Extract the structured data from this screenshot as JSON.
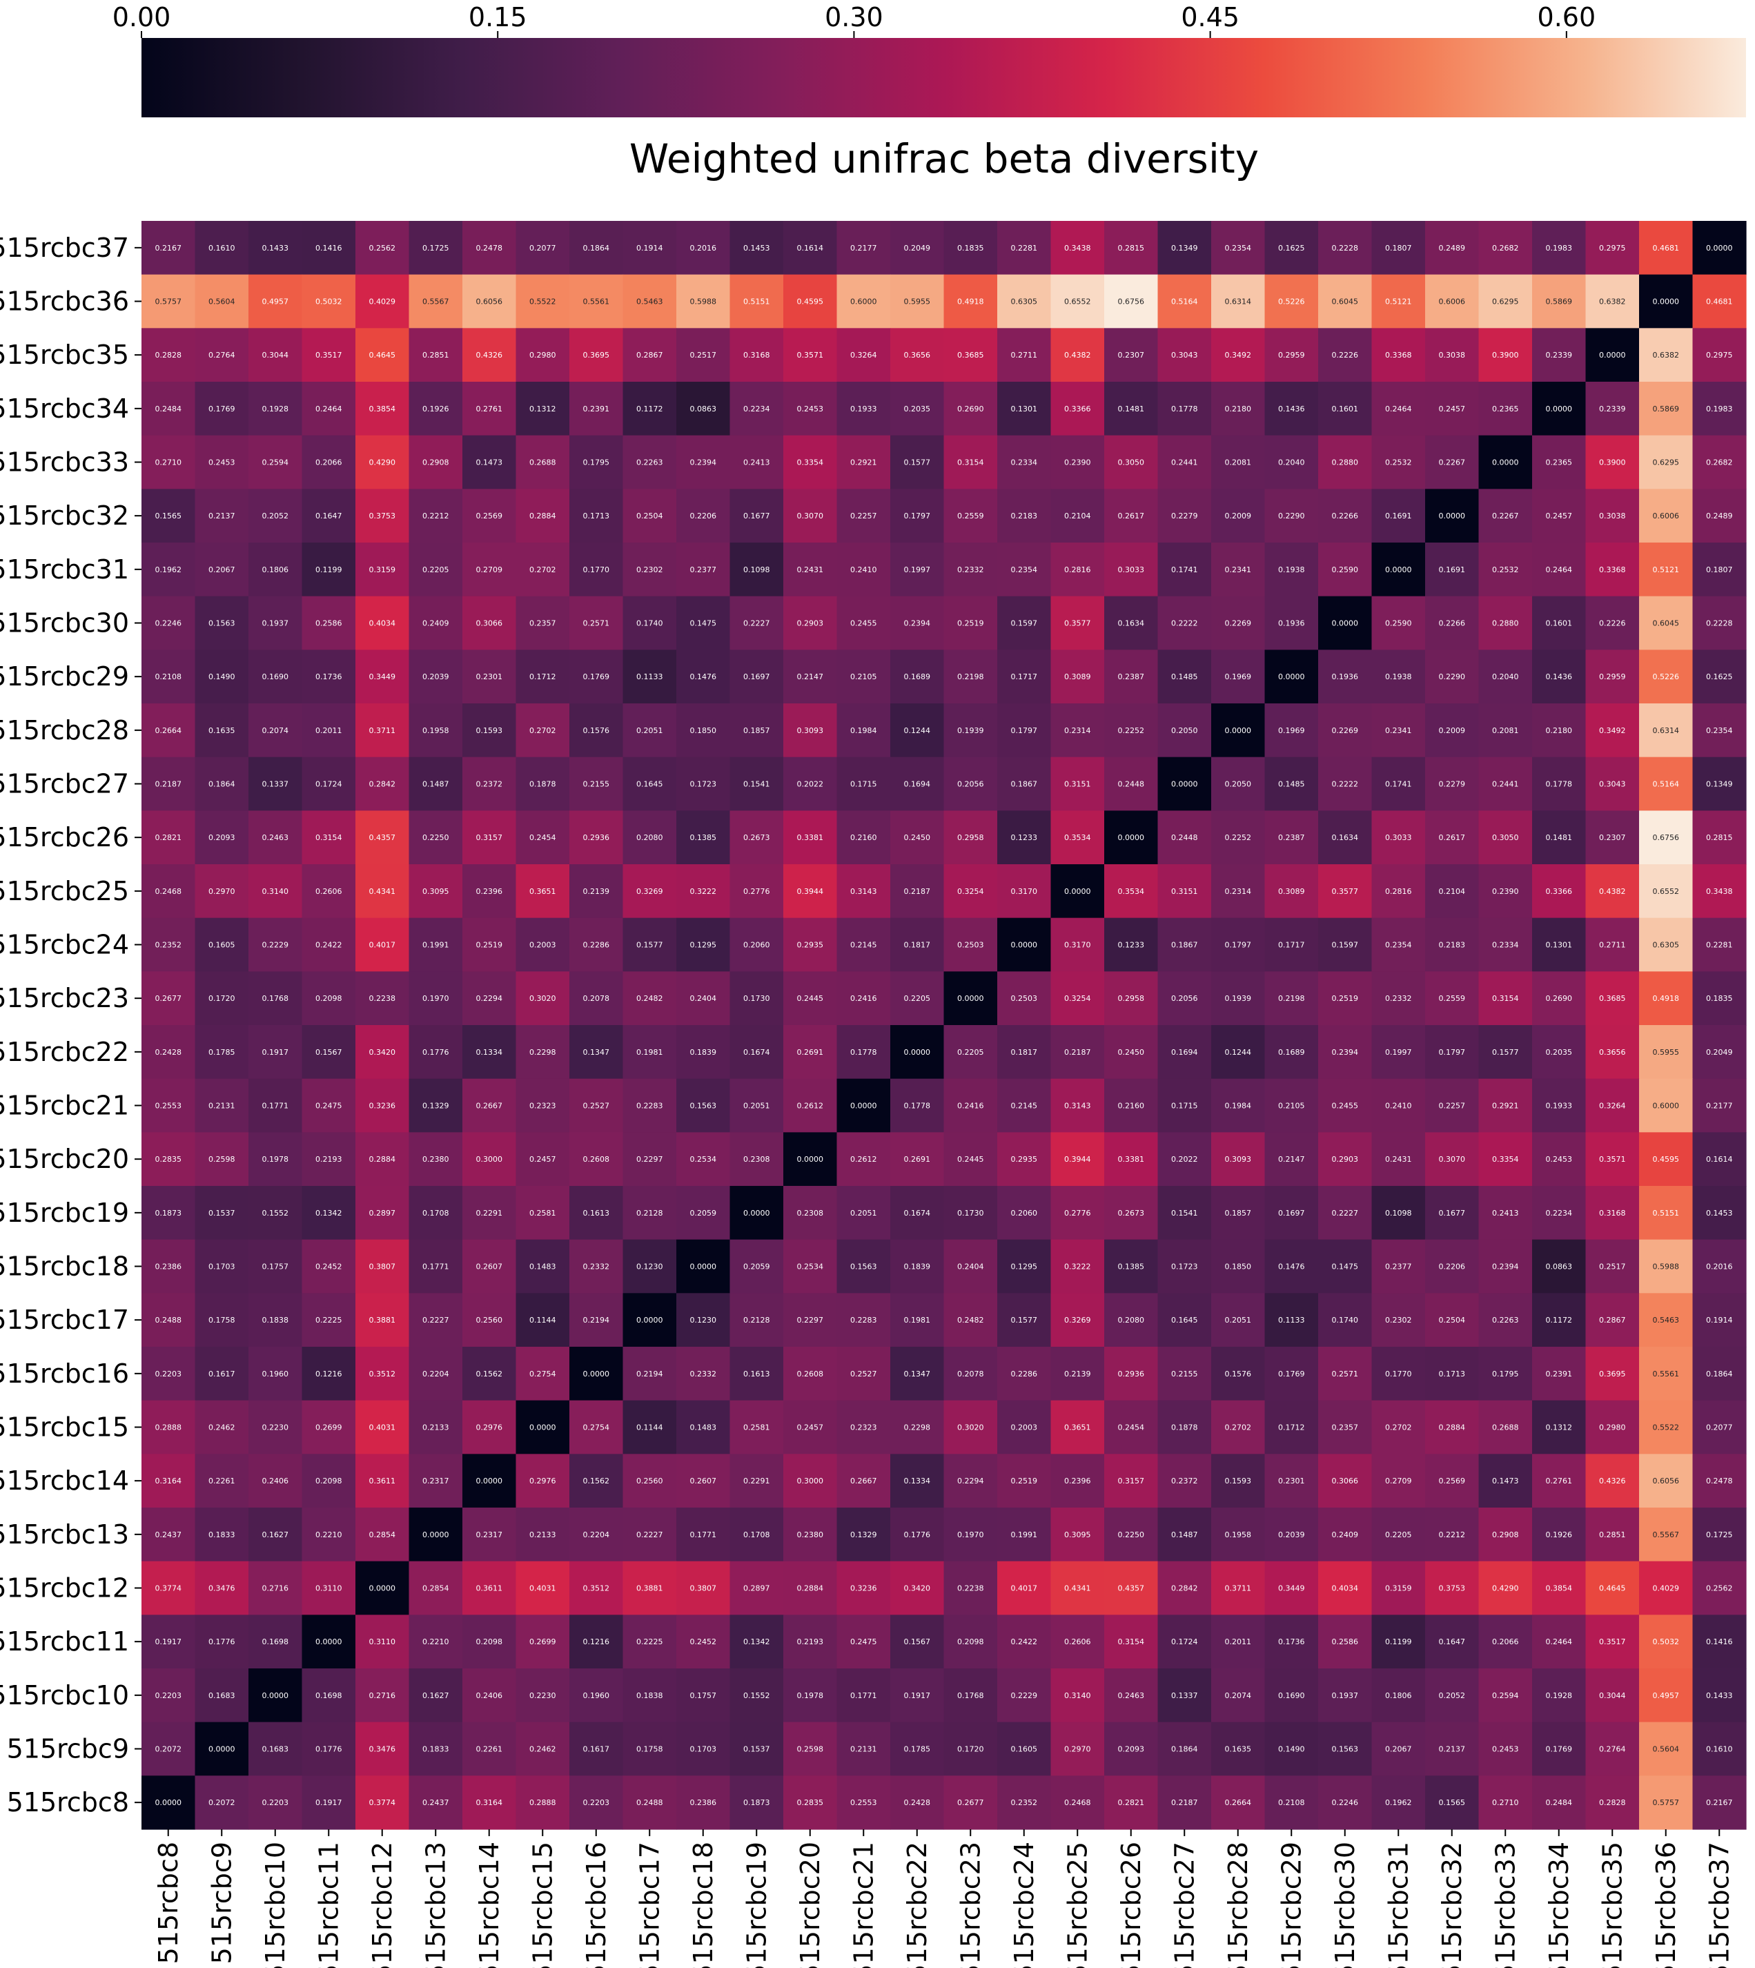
{
  "chart_data": {
    "type": "heatmap",
    "title": "Weighted unifrac beta diversity",
    "xlabel": "",
    "ylabel": "",
    "colormap": "rocket",
    "colorbar": {
      "position": "top",
      "range": [
        0.0,
        0.6756
      ],
      "ticks": [
        0.0,
        0.15,
        0.3,
        0.45,
        0.6
      ],
      "tick_labels": [
        "0.00",
        "0.15",
        "0.30",
        "0.45",
        "0.60"
      ],
      "label": "Weighted unifrac beta diversity"
    },
    "x_labels": [
      "515rcbc8",
      "515rcbc9",
      "515rcbc10",
      "515rcbc11",
      "515rcbc12",
      "515rcbc13",
      "515rcbc14",
      "515rcbc15",
      "515rcbc16",
      "515rcbc17",
      "515rcbc18",
      "515rcbc19",
      "515rcbc20",
      "515rcbc21",
      "515rcbc22",
      "515rcbc23",
      "515rcbc24",
      "515rcbc25",
      "515rcbc26",
      "515rcbc27",
      "515rcbc28",
      "515rcbc29",
      "515rcbc30",
      "515rcbc31",
      "515rcbc32",
      "515rcbc33",
      "515rcbc34",
      "515rcbc35",
      "515rcbc36",
      "515rcbc37"
    ],
    "y_labels_top_to_bottom": [
      "515rcbc37",
      "515rcbc36",
      "515rcbc35",
      "515rcbc34",
      "515rcbc33",
      "515rcbc32",
      "515rcbc31",
      "515rcbc30",
      "515rcbc29",
      "515rcbc28",
      "515rcbc27",
      "515rcbc26",
      "515rcbc25",
      "515rcbc24",
      "515rcbc23",
      "515rcbc22",
      "515rcbc21",
      "515rcbc20",
      "515rcbc19",
      "515rcbc18",
      "515rcbc17",
      "515rcbc16",
      "515rcbc15",
      "515rcbc14",
      "515rcbc13",
      "515rcbc12",
      "515rcbc11",
      "515rcbc10",
      "515rcbc9",
      "515rcbc8"
    ],
    "matrix_top_to_bottom": [
      [
        "0.2167",
        "0.1610",
        "0.1433",
        "0.1416",
        "0.2562",
        "0.1725",
        "0.2478",
        "0.2077",
        "0.1864",
        "0.1914",
        "0.2016",
        "0.1453",
        "0.1614",
        "0.2177",
        "0.2049",
        "0.1835",
        "0.2281",
        "0.3438",
        "0.2815",
        "0.1349",
        "0.2354",
        "0.1625",
        "0.2228",
        "0.1807",
        "0.2489",
        "0.2682",
        "0.1983",
        "0.2975",
        "0.4681",
        "0.0000"
      ],
      [
        "0.5757",
        "0.5604",
        "0.4957",
        "0.5032",
        "0.4029",
        "0.5567",
        "0.6056",
        "0.5522",
        "0.5561",
        "0.5463",
        "0.5988",
        "0.5151",
        "0.4595",
        "0.6000",
        "0.5955",
        "0.4918",
        "0.6305",
        "0.6552",
        "0.6756",
        "0.5164",
        "0.6314",
        "0.5226",
        "0.6045",
        "0.5121",
        "0.6006",
        "0.6295",
        "0.5869",
        "0.6382",
        "0.0000",
        "0.4681"
      ],
      [
        "0.2828",
        "0.2764",
        "0.3044",
        "0.3517",
        "0.4645",
        "0.2851",
        "0.4326",
        "0.2980",
        "0.3695",
        "0.2867",
        "0.2517",
        "0.3168",
        "0.3571",
        "0.3264",
        "0.3656",
        "0.3685",
        "0.2711",
        "0.4382",
        "0.2307",
        "0.3043",
        "0.3492",
        "0.2959",
        "0.2226",
        "0.3368",
        "0.3038",
        "0.3900",
        "0.2339",
        "0.0000",
        "0.6382",
        "0.2975"
      ],
      [
        "0.2484",
        "0.1769",
        "0.1928",
        "0.2464",
        "0.3854",
        "0.1926",
        "0.2761",
        "0.1312",
        "0.2391",
        "0.1172",
        "0.0863",
        "0.2234",
        "0.2453",
        "0.1933",
        "0.2035",
        "0.2690",
        "0.1301",
        "0.3366",
        "0.1481",
        "0.1778",
        "0.2180",
        "0.1436",
        "0.1601",
        "0.2464",
        "0.2457",
        "0.2365",
        "0.0000",
        "0.2339",
        "0.5869",
        "0.1983"
      ],
      [
        "0.2710",
        "0.2453",
        "0.2594",
        "0.2066",
        "0.4290",
        "0.2908",
        "0.1473",
        "0.2688",
        "0.1795",
        "0.2263",
        "0.2394",
        "0.2413",
        "0.3354",
        "0.2921",
        "0.1577",
        "0.3154",
        "0.2334",
        "0.2390",
        "0.3050",
        "0.2441",
        "0.2081",
        "0.2040",
        "0.2880",
        "0.2532",
        "0.2267",
        "0.0000",
        "0.2365",
        "0.3900",
        "0.6295",
        "0.2682"
      ],
      [
        "0.1565",
        "0.2137",
        "0.2052",
        "0.1647",
        "0.3753",
        "0.2212",
        "0.2569",
        "0.2884",
        "0.1713",
        "0.2504",
        "0.2206",
        "0.1677",
        "0.3070",
        "0.2257",
        "0.1797",
        "0.2559",
        "0.2183",
        "0.2104",
        "0.2617",
        "0.2279",
        "0.2009",
        "0.2290",
        "0.2266",
        "0.1691",
        "0.0000",
        "0.2267",
        "0.2457",
        "0.3038",
        "0.6006",
        "0.2489"
      ],
      [
        "0.1962",
        "0.2067",
        "0.1806",
        "0.1199",
        "0.3159",
        "0.2205",
        "0.2709",
        "0.2702",
        "0.1770",
        "0.2302",
        "0.2377",
        "0.1098",
        "0.2431",
        "0.2410",
        "0.1997",
        "0.2332",
        "0.2354",
        "0.2816",
        "0.3033",
        "0.1741",
        "0.2341",
        "0.1938",
        "0.2590",
        "0.0000",
        "0.1691",
        "0.2532",
        "0.2464",
        "0.3368",
        "0.5121",
        "0.1807"
      ],
      [
        "0.2246",
        "0.1563",
        "0.1937",
        "0.2586",
        "0.4034",
        "0.2409",
        "0.3066",
        "0.2357",
        "0.2571",
        "0.1740",
        "0.1475",
        "0.2227",
        "0.2903",
        "0.2455",
        "0.2394",
        "0.2519",
        "0.1597",
        "0.3577",
        "0.1634",
        "0.2222",
        "0.2269",
        "0.1936",
        "0.0000",
        "0.2590",
        "0.2266",
        "0.2880",
        "0.1601",
        "0.2226",
        "0.6045",
        "0.2228"
      ],
      [
        "0.2108",
        "0.1490",
        "0.1690",
        "0.1736",
        "0.3449",
        "0.2039",
        "0.2301",
        "0.1712",
        "0.1769",
        "0.1133",
        "0.1476",
        "0.1697",
        "0.2147",
        "0.2105",
        "0.1689",
        "0.2198",
        "0.1717",
        "0.3089",
        "0.2387",
        "0.1485",
        "0.1969",
        "0.0000",
        "0.1936",
        "0.1938",
        "0.2290",
        "0.2040",
        "0.1436",
        "0.2959",
        "0.5226",
        "0.1625"
      ],
      [
        "0.2664",
        "0.1635",
        "0.2074",
        "0.2011",
        "0.3711",
        "0.1958",
        "0.1593",
        "0.2702",
        "0.1576",
        "0.2051",
        "0.1850",
        "0.1857",
        "0.3093",
        "0.1984",
        "0.1244",
        "0.1939",
        "0.1797",
        "0.2314",
        "0.2252",
        "0.2050",
        "0.0000",
        "0.1969",
        "0.2269",
        "0.2341",
        "0.2009",
        "0.2081",
        "0.2180",
        "0.3492",
        "0.6314",
        "0.2354"
      ],
      [
        "0.2187",
        "0.1864",
        "0.1337",
        "0.1724",
        "0.2842",
        "0.1487",
        "0.2372",
        "0.1878",
        "0.2155",
        "0.1645",
        "0.1723",
        "0.1541",
        "0.2022",
        "0.1715",
        "0.1694",
        "0.2056",
        "0.1867",
        "0.3151",
        "0.2448",
        "0.0000",
        "0.2050",
        "0.1485",
        "0.2222",
        "0.1741",
        "0.2279",
        "0.2441",
        "0.1778",
        "0.3043",
        "0.5164",
        "0.1349"
      ],
      [
        "0.2821",
        "0.2093",
        "0.2463",
        "0.3154",
        "0.4357",
        "0.2250",
        "0.3157",
        "0.2454",
        "0.2936",
        "0.2080",
        "0.1385",
        "0.2673",
        "0.3381",
        "0.2160",
        "0.2450",
        "0.2958",
        "0.1233",
        "0.3534",
        "0.0000",
        "0.2448",
        "0.2252",
        "0.2387",
        "0.1634",
        "0.3033",
        "0.2617",
        "0.3050",
        "0.1481",
        "0.2307",
        "0.6756",
        "0.2815"
      ],
      [
        "0.2468",
        "0.2970",
        "0.3140",
        "0.2606",
        "0.4341",
        "0.3095",
        "0.2396",
        "0.3651",
        "0.2139",
        "0.3269",
        "0.3222",
        "0.2776",
        "0.3944",
        "0.3143",
        "0.2187",
        "0.3254",
        "0.3170",
        "0.0000",
        "0.3534",
        "0.3151",
        "0.2314",
        "0.3089",
        "0.3577",
        "0.2816",
        "0.2104",
        "0.2390",
        "0.3366",
        "0.4382",
        "0.6552",
        "0.3438"
      ],
      [
        "0.2352",
        "0.1605",
        "0.2229",
        "0.2422",
        "0.4017",
        "0.1991",
        "0.2519",
        "0.2003",
        "0.2286",
        "0.1577",
        "0.1295",
        "0.2060",
        "0.2935",
        "0.2145",
        "0.1817",
        "0.2503",
        "0.0000",
        "0.3170",
        "0.1233",
        "0.1867",
        "0.1797",
        "0.1717",
        "0.1597",
        "0.2354",
        "0.2183",
        "0.2334",
        "0.1301",
        "0.2711",
        "0.6305",
        "0.2281"
      ],
      [
        "0.2677",
        "0.1720",
        "0.1768",
        "0.2098",
        "0.2238",
        "0.1970",
        "0.2294",
        "0.3020",
        "0.2078",
        "0.2482",
        "0.2404",
        "0.1730",
        "0.2445",
        "0.2416",
        "0.2205",
        "0.0000",
        "0.2503",
        "0.3254",
        "0.2958",
        "0.2056",
        "0.1939",
        "0.2198",
        "0.2519",
        "0.2332",
        "0.2559",
        "0.3154",
        "0.2690",
        "0.3685",
        "0.4918",
        "0.1835"
      ],
      [
        "0.2428",
        "0.1785",
        "0.1917",
        "0.1567",
        "0.3420",
        "0.1776",
        "0.1334",
        "0.2298",
        "0.1347",
        "0.1981",
        "0.1839",
        "0.1674",
        "0.2691",
        "0.1778",
        "0.0000",
        "0.2205",
        "0.1817",
        "0.2187",
        "0.2450",
        "0.1694",
        "0.1244",
        "0.1689",
        "0.2394",
        "0.1997",
        "0.1797",
        "0.1577",
        "0.2035",
        "0.3656",
        "0.5955",
        "0.2049"
      ],
      [
        "0.2553",
        "0.2131",
        "0.1771",
        "0.2475",
        "0.3236",
        "0.1329",
        "0.2667",
        "0.2323",
        "0.2527",
        "0.2283",
        "0.1563",
        "0.2051",
        "0.2612",
        "0.0000",
        "0.1778",
        "0.2416",
        "0.2145",
        "0.3143",
        "0.2160",
        "0.1715",
        "0.1984",
        "0.2105",
        "0.2455",
        "0.2410",
        "0.2257",
        "0.2921",
        "0.1933",
        "0.3264",
        "0.6000",
        "0.2177"
      ],
      [
        "0.2835",
        "0.2598",
        "0.1978",
        "0.2193",
        "0.2884",
        "0.2380",
        "0.3000",
        "0.2457",
        "0.2608",
        "0.2297",
        "0.2534",
        "0.2308",
        "0.0000",
        "0.2612",
        "0.2691",
        "0.2445",
        "0.2935",
        "0.3944",
        "0.3381",
        "0.2022",
        "0.3093",
        "0.2147",
        "0.2903",
        "0.2431",
        "0.3070",
        "0.3354",
        "0.2453",
        "0.3571",
        "0.4595",
        "0.1614"
      ],
      [
        "0.1873",
        "0.1537",
        "0.1552",
        "0.1342",
        "0.2897",
        "0.1708",
        "0.2291",
        "0.2581",
        "0.1613",
        "0.2128",
        "0.2059",
        "0.0000",
        "0.2308",
        "0.2051",
        "0.1674",
        "0.1730",
        "0.2060",
        "0.2776",
        "0.2673",
        "0.1541",
        "0.1857",
        "0.1697",
        "0.2227",
        "0.1098",
        "0.1677",
        "0.2413",
        "0.2234",
        "0.3168",
        "0.5151",
        "0.1453"
      ],
      [
        "0.2386",
        "0.1703",
        "0.1757",
        "0.2452",
        "0.3807",
        "0.1771",
        "0.2607",
        "0.1483",
        "0.2332",
        "0.1230",
        "0.0000",
        "0.2059",
        "0.2534",
        "0.1563",
        "0.1839",
        "0.2404",
        "0.1295",
        "0.3222",
        "0.1385",
        "0.1723",
        "0.1850",
        "0.1476",
        "0.1475",
        "0.2377",
        "0.2206",
        "0.2394",
        "0.0863",
        "0.2517",
        "0.5988",
        "0.2016"
      ],
      [
        "0.2488",
        "0.1758",
        "0.1838",
        "0.2225",
        "0.3881",
        "0.2227",
        "0.2560",
        "0.1144",
        "0.2194",
        "0.0000",
        "0.1230",
        "0.2128",
        "0.2297",
        "0.2283",
        "0.1981",
        "0.2482",
        "0.1577",
        "0.3269",
        "0.2080",
        "0.1645",
        "0.2051",
        "0.1133",
        "0.1740",
        "0.2302",
        "0.2504",
        "0.2263",
        "0.1172",
        "0.2867",
        "0.5463",
        "0.1914"
      ],
      [
        "0.2203",
        "0.1617",
        "0.1960",
        "0.1216",
        "0.3512",
        "0.2204",
        "0.1562",
        "0.2754",
        "0.0000",
        "0.2194",
        "0.2332",
        "0.1613",
        "0.2608",
        "0.2527",
        "0.1347",
        "0.2078",
        "0.2286",
        "0.2139",
        "0.2936",
        "0.2155",
        "0.1576",
        "0.1769",
        "0.2571",
        "0.1770",
        "0.1713",
        "0.1795",
        "0.2391",
        "0.3695",
        "0.5561",
        "0.1864"
      ],
      [
        "0.2888",
        "0.2462",
        "0.2230",
        "0.2699",
        "0.4031",
        "0.2133",
        "0.2976",
        "0.0000",
        "0.2754",
        "0.1144",
        "0.1483",
        "0.2581",
        "0.2457",
        "0.2323",
        "0.2298",
        "0.3020",
        "0.2003",
        "0.3651",
        "0.2454",
        "0.1878",
        "0.2702",
        "0.1712",
        "0.2357",
        "0.2702",
        "0.2884",
        "0.2688",
        "0.1312",
        "0.2980",
        "0.5522",
        "0.2077"
      ],
      [
        "0.3164",
        "0.2261",
        "0.2406",
        "0.2098",
        "0.3611",
        "0.2317",
        "0.0000",
        "0.2976",
        "0.1562",
        "0.2560",
        "0.2607",
        "0.2291",
        "0.3000",
        "0.2667",
        "0.1334",
        "0.2294",
        "0.2519",
        "0.2396",
        "0.3157",
        "0.2372",
        "0.1593",
        "0.2301",
        "0.3066",
        "0.2709",
        "0.2569",
        "0.1473",
        "0.2761",
        "0.4326",
        "0.6056",
        "0.2478"
      ],
      [
        "0.2437",
        "0.1833",
        "0.1627",
        "0.2210",
        "0.2854",
        "0.0000",
        "0.2317",
        "0.2133",
        "0.2204",
        "0.2227",
        "0.1771",
        "0.1708",
        "0.2380",
        "0.1329",
        "0.1776",
        "0.1970",
        "0.1991",
        "0.3095",
        "0.2250",
        "0.1487",
        "0.1958",
        "0.2039",
        "0.2409",
        "0.2205",
        "0.2212",
        "0.2908",
        "0.1926",
        "0.2851",
        "0.5567",
        "0.1725"
      ],
      [
        "0.3774",
        "0.3476",
        "0.2716",
        "0.3110",
        "0.0000",
        "0.2854",
        "0.3611",
        "0.4031",
        "0.3512",
        "0.3881",
        "0.3807",
        "0.2897",
        "0.2884",
        "0.3236",
        "0.3420",
        "0.2238",
        "0.4017",
        "0.4341",
        "0.4357",
        "0.2842",
        "0.3711",
        "0.3449",
        "0.4034",
        "0.3159",
        "0.3753",
        "0.4290",
        "0.3854",
        "0.4645",
        "0.4029",
        "0.2562"
      ],
      [
        "0.1917",
        "0.1776",
        "0.1698",
        "0.0000",
        "0.3110",
        "0.2210",
        "0.2098",
        "0.2699",
        "0.1216",
        "0.2225",
        "0.2452",
        "0.1342",
        "0.2193",
        "0.2475",
        "0.1567",
        "0.2098",
        "0.2422",
        "0.2606",
        "0.3154",
        "0.1724",
        "0.2011",
        "0.1736",
        "0.2586",
        "0.1199",
        "0.1647",
        "0.2066",
        "0.2464",
        "0.3517",
        "0.5032",
        "0.1416"
      ],
      [
        "0.2203",
        "0.1683",
        "0.0000",
        "0.1698",
        "0.2716",
        "0.1627",
        "0.2406",
        "0.2230",
        "0.1960",
        "0.1838",
        "0.1757",
        "0.1552",
        "0.1978",
        "0.1771",
        "0.1917",
        "0.1768",
        "0.2229",
        "0.3140",
        "0.2463",
        "0.1337",
        "0.2074",
        "0.1690",
        "0.1937",
        "0.1806",
        "0.2052",
        "0.2594",
        "0.1928",
        "0.3044",
        "0.4957",
        "0.1433"
      ],
      [
        "0.2072",
        "0.0000",
        "0.1683",
        "0.1776",
        "0.3476",
        "0.1833",
        "0.2261",
        "0.2462",
        "0.1617",
        "0.1758",
        "0.1703",
        "0.1537",
        "0.2598",
        "0.2131",
        "0.1785",
        "0.1720",
        "0.1605",
        "0.2970",
        "0.2093",
        "0.1864",
        "0.1635",
        "0.1490",
        "0.1563",
        "0.2067",
        "0.2137",
        "0.2453",
        "0.1769",
        "0.2764",
        "0.5604",
        "0.1610"
      ],
      [
        "0.0000",
        "0.2072",
        "0.2203",
        "0.1917",
        "0.3774",
        "0.2437",
        "0.3164",
        "0.2888",
        "0.2203",
        "0.2488",
        "0.2386",
        "0.1873",
        "0.2835",
        "0.2553",
        "0.2428",
        "0.2677",
        "0.2352",
        "0.2468",
        "0.2821",
        "0.2187",
        "0.2664",
        "0.2108",
        "0.2246",
        "0.1962",
        "0.1565",
        "0.2710",
        "0.2484",
        "0.2828",
        "0.5757",
        "0.2167"
      ]
    ]
  }
}
